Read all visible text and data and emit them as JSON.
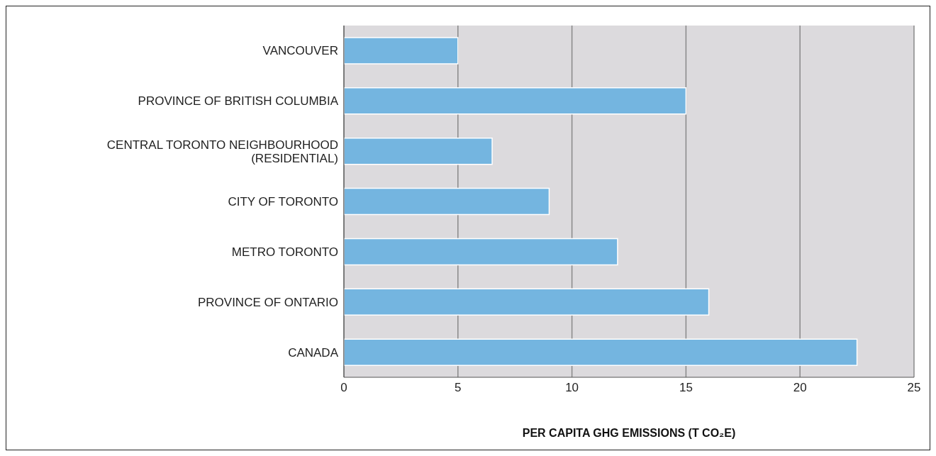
{
  "chart_data": {
    "type": "bar",
    "orientation": "horizontal",
    "categories": [
      "VANCOUVER",
      "PROVINCE OF BRITISH COLUMBIA",
      "CENTRAL TORONTO NEIGHBOURHOOD\n(RESIDENTIAL)",
      "CITY OF TORONTO",
      "METRO TORONTO",
      "PROVINCE OF ONTARIO",
      "CANADA"
    ],
    "values": [
      5,
      15,
      6.5,
      9,
      12,
      16,
      22.5
    ],
    "color": "#74b5e0",
    "xlabel": "PER CAPITA GHG EMISSIONS (T CO₂E)",
    "xlim": [
      0,
      25
    ],
    "xticks": [
      0,
      5,
      10,
      15,
      20,
      25
    ],
    "grid": "x"
  }
}
